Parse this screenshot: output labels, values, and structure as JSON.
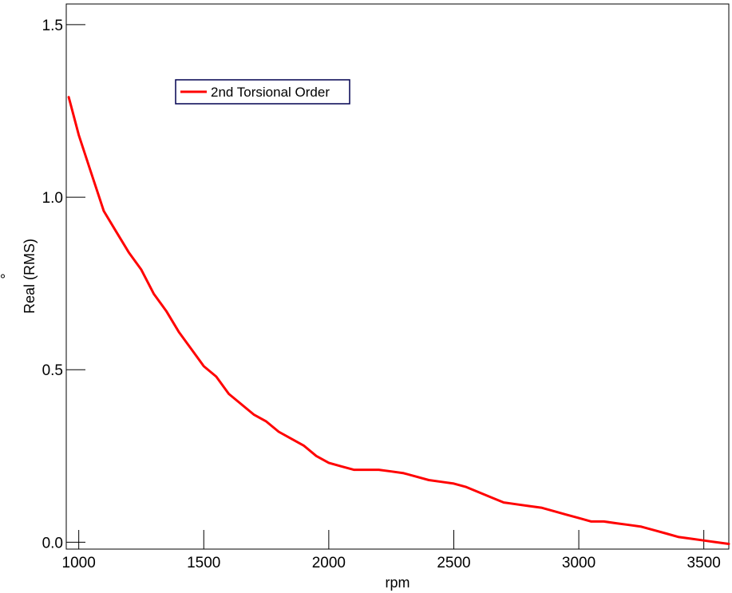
{
  "chart_data": {
    "type": "line",
    "xlabel": "rpm",
    "ylabel": "Real (RMS)",
    "yunit": "°",
    "xlim": [
      950,
      3600
    ],
    "ylim": [
      -0.02,
      1.56
    ],
    "xticks": [
      1000,
      1500,
      2000,
      2500,
      3000,
      3500
    ],
    "yticks": [
      0.0,
      0.5,
      1.0,
      1.5
    ],
    "xtick_labels": [
      "1000",
      "1500",
      "2000",
      "2500",
      "3000",
      "3500"
    ],
    "ytick_labels": [
      "0.0",
      "0.5",
      "1.0",
      "1.5"
    ],
    "grid": false,
    "legend_position": "top-left",
    "series": [
      {
        "name": "2nd Torsional Order",
        "color": "#ff0000",
        "x": [
          960,
          1000,
          1050,
          1100,
          1150,
          1200,
          1250,
          1300,
          1350,
          1400,
          1450,
          1500,
          1550,
          1600,
          1650,
          1700,
          1750,
          1800,
          1850,
          1900,
          1950,
          2000,
          2050,
          2100,
          2150,
          2200,
          2250,
          2300,
          2350,
          2400,
          2450,
          2500,
          2550,
          2600,
          2650,
          2700,
          2750,
          2800,
          2850,
          2900,
          2950,
          3000,
          3050,
          3100,
          3150,
          3200,
          3250,
          3300,
          3350,
          3400,
          3450,
          3500,
          3550,
          3600
        ],
        "y": [
          1.29,
          1.18,
          1.07,
          0.96,
          0.9,
          0.84,
          0.79,
          0.72,
          0.67,
          0.61,
          0.56,
          0.51,
          0.48,
          0.43,
          0.4,
          0.37,
          0.35,
          0.32,
          0.3,
          0.28,
          0.25,
          0.23,
          0.22,
          0.21,
          0.21,
          0.21,
          0.205,
          0.2,
          0.19,
          0.18,
          0.175,
          0.17,
          0.16,
          0.145,
          0.13,
          0.115,
          0.11,
          0.105,
          0.1,
          0.09,
          0.08,
          0.07,
          0.06,
          0.06,
          0.055,
          0.05,
          0.045,
          0.035,
          0.025,
          0.015,
          0.01,
          0.005,
          0.0,
          -0.005
        ]
      }
    ]
  }
}
